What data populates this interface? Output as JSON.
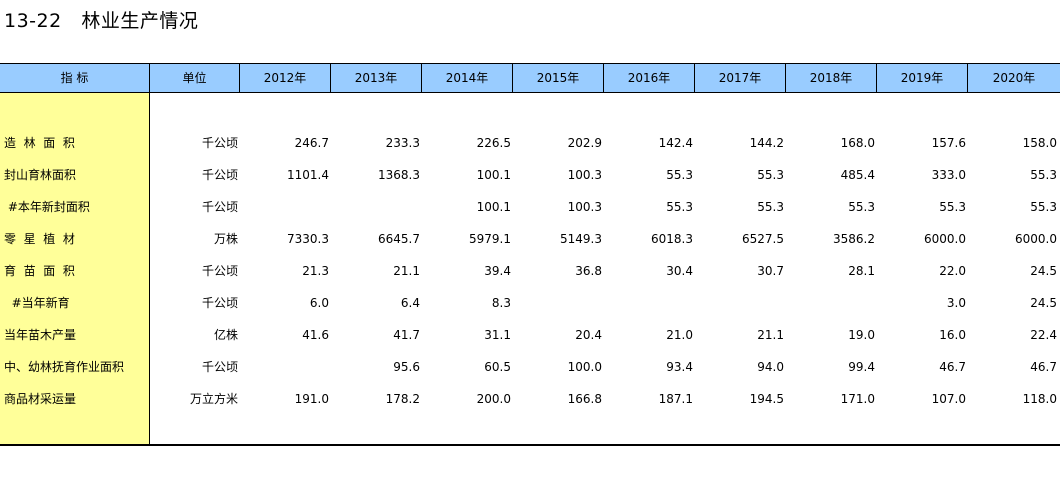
{
  "title": "13-22   林业生产情况",
  "header": {
    "indicator": "指    标",
    "unit": "单位",
    "years": [
      "2012年",
      "2013年",
      "2014年",
      "2015年",
      "2016年",
      "2017年",
      "2018年",
      "2019年",
      "2020年"
    ]
  },
  "rows": [
    {
      "indicator": "造  林  面  积",
      "unit": "千公顷",
      "values": [
        "246.7",
        "233.3",
        "226.5",
        "202.9",
        "142.4",
        "144.2",
        "168.0",
        "157.6",
        "158.0"
      ]
    },
    {
      "indicator": "封山育林面积",
      "unit": "千公顷",
      "values": [
        "1101.4",
        "1368.3",
        "100.1",
        "100.3",
        "55.3",
        "55.3",
        "485.4",
        "333.0",
        "55.3"
      ]
    },
    {
      "indicator": " #本年新封面积",
      "unit": "千公顷",
      "values": [
        "",
        "",
        "100.1",
        "100.3",
        "55.3",
        "55.3",
        "55.3",
        "55.3",
        "55.3"
      ]
    },
    {
      "indicator": "零  星  植  材",
      "unit": "万株",
      "values": [
        "7330.3",
        "6645.7",
        "5979.1",
        "5149.3",
        "6018.3",
        "6527.5",
        "3586.2",
        "6000.0",
        "6000.0"
      ]
    },
    {
      "indicator": "育  苗  面  积",
      "unit": "千公顷",
      "values": [
        "21.3",
        "21.1",
        "39.4",
        "36.8",
        "30.4",
        "30.7",
        "28.1",
        "22.0",
        "24.5"
      ]
    },
    {
      "indicator": "  #当年新育",
      "unit": "千公顷",
      "values": [
        "6.0",
        "6.4",
        "8.3",
        "",
        "",
        "",
        "",
        "3.0",
        "24.5"
      ]
    },
    {
      "indicator": "当年苗木产量",
      "unit": "亿株",
      "values": [
        "41.6",
        "41.7",
        "31.1",
        "20.4",
        "21.0",
        "21.1",
        "19.0",
        "16.0",
        "22.4"
      ]
    },
    {
      "indicator": "中、幼林抚育作业面积",
      "unit": "千公顷",
      "values": [
        "",
        "95.6",
        "60.5",
        "100.0",
        "93.4",
        "94.0",
        "99.4",
        "46.7",
        "46.7"
      ]
    },
    {
      "indicator": "商品材采运量",
      "unit": "万立方米",
      "values": [
        "191.0",
        "178.2",
        "200.0",
        "166.8",
        "187.1",
        "194.5",
        "171.0",
        "107.0",
        "118.0"
      ]
    }
  ]
}
